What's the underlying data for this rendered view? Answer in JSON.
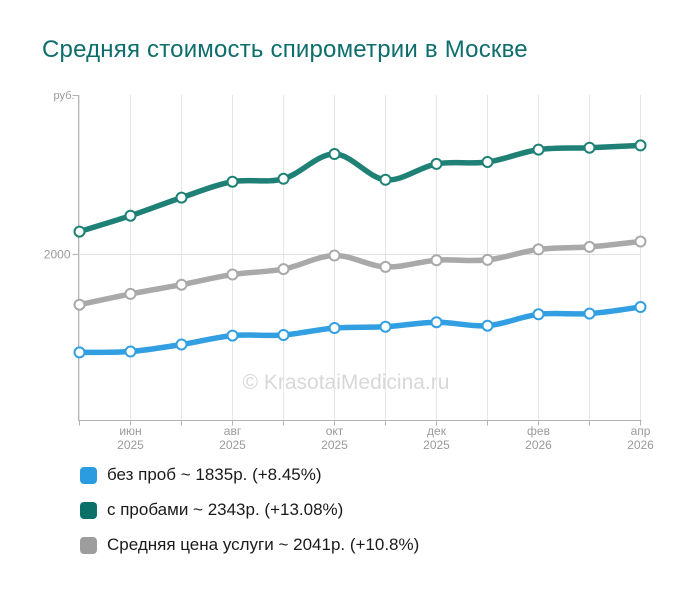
{
  "title": "Средняя стоимость спирометрии в Москве",
  "title_color": "#0e6d6d",
  "watermark": "© KrasotaiMedicina.ru",
  "legend": {
    "items": [
      {
        "label": "без проб ~ 1835р. (+8.45%)",
        "color": "#2b9cdf"
      },
      {
        "label": "с пробами ~ 2343р. (+13.08%)",
        "color": "#0b7168"
      },
      {
        "label": "Средняя цена услуги ~ 2041р. (+10.8%)",
        "color": "#9d9d9d"
      }
    ]
  },
  "chart_data": {
    "type": "line",
    "title": "Средняя стоимость спирометрии в Москве",
    "ylabel": "руб.",
    "xlabel": "",
    "ylim": [
      1480,
      2500
    ],
    "yticks": [
      {
        "value": 2000,
        "label": "2000"
      }
    ],
    "grid": "vertical line at each monthly tick, horizontal gridline at 2000 only",
    "legend_position": "bottom-left",
    "marker": "white circle with colored ring",
    "smoothing": "spline",
    "categories": [
      "",
      "июн 2025",
      "",
      "авг 2025",
      "",
      "окт 2025",
      "",
      "дек 2025",
      "",
      "фев 2026",
      "",
      "апр 2026"
    ],
    "series": [
      {
        "name": "без проб",
        "color": "#319fe2",
        "final_value": 1835,
        "change_pct": "+8.45%",
        "values": [
          1692,
          1695,
          1717,
          1745,
          1747,
          1769,
          1773,
          1787,
          1776,
          1812,
          1814,
          1835
        ]
      },
      {
        "name": "с пробами",
        "color": "#1f8176",
        "final_value": 2343,
        "change_pct": "+13.08%",
        "values": [
          2072,
          2122,
          2179,
          2229,
          2238,
          2316,
          2235,
          2285,
          2291,
          2330,
          2336,
          2343
        ]
      },
      {
        "name": "Средняя цена услуги",
        "color": "#a9a9a9",
        "final_value": 2041,
        "change_pct": "+10.8%",
        "values": [
          1842,
          1876,
          1905,
          1937,
          1954,
          1997,
          1961,
          1982,
          1983,
          2016,
          2024,
          2041
        ]
      }
    ]
  }
}
